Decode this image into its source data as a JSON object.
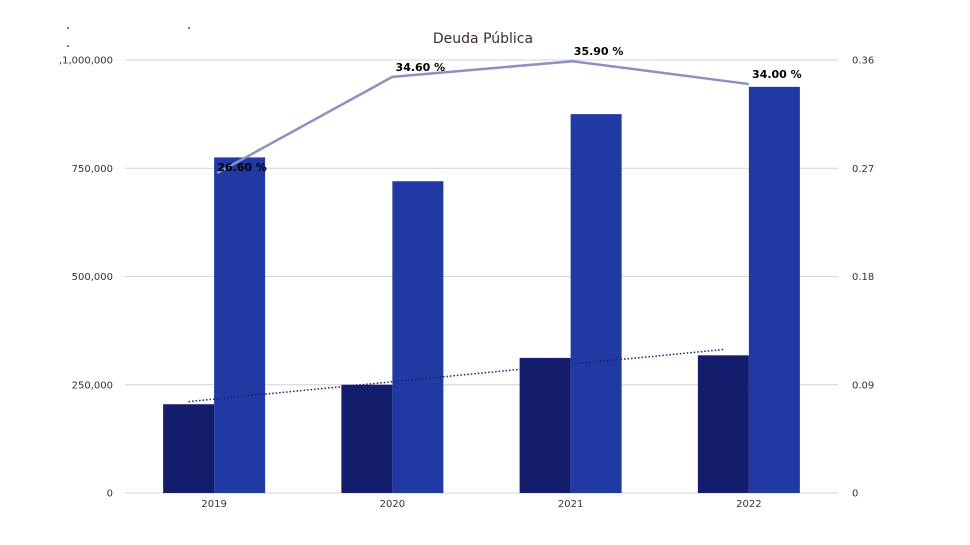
{
  "chart_data": {
    "type": "bar",
    "title": "Deuda Pública",
    "categories": [
      "2019",
      "2020",
      "2021",
      "2022"
    ],
    "series": [
      {
        "values": [
          205000,
          250000,
          312000,
          318000
        ],
        "color": "#141d6b"
      },
      {
        "values": [
          775000,
          720000,
          875000,
          938000
        ],
        "color": "#2139a3"
      }
    ],
    "line_series": {
      "axis": "right",
      "values": [
        0.266,
        0.346,
        0.359,
        0.34
      ],
      "labels": [
        "26.60 %",
        "34.60 %",
        "35.90 %",
        "34.00 %"
      ],
      "color": "#8f8fc4"
    },
    "trendline": {
      "style": "dotted",
      "color": "#1a2270"
    },
    "y_left": {
      "ylim": [
        0,
        1000000
      ],
      "ticks": [
        "0",
        "250,000",
        "500,000",
        "750,000",
        ",1,000,000"
      ]
    },
    "y_right": {
      "ylim": [
        0,
        0.36
      ],
      "ticks": [
        "0",
        "0.09",
        "0.18",
        "0.27",
        "0.36"
      ]
    },
    "grid": true,
    "legend": "none"
  }
}
